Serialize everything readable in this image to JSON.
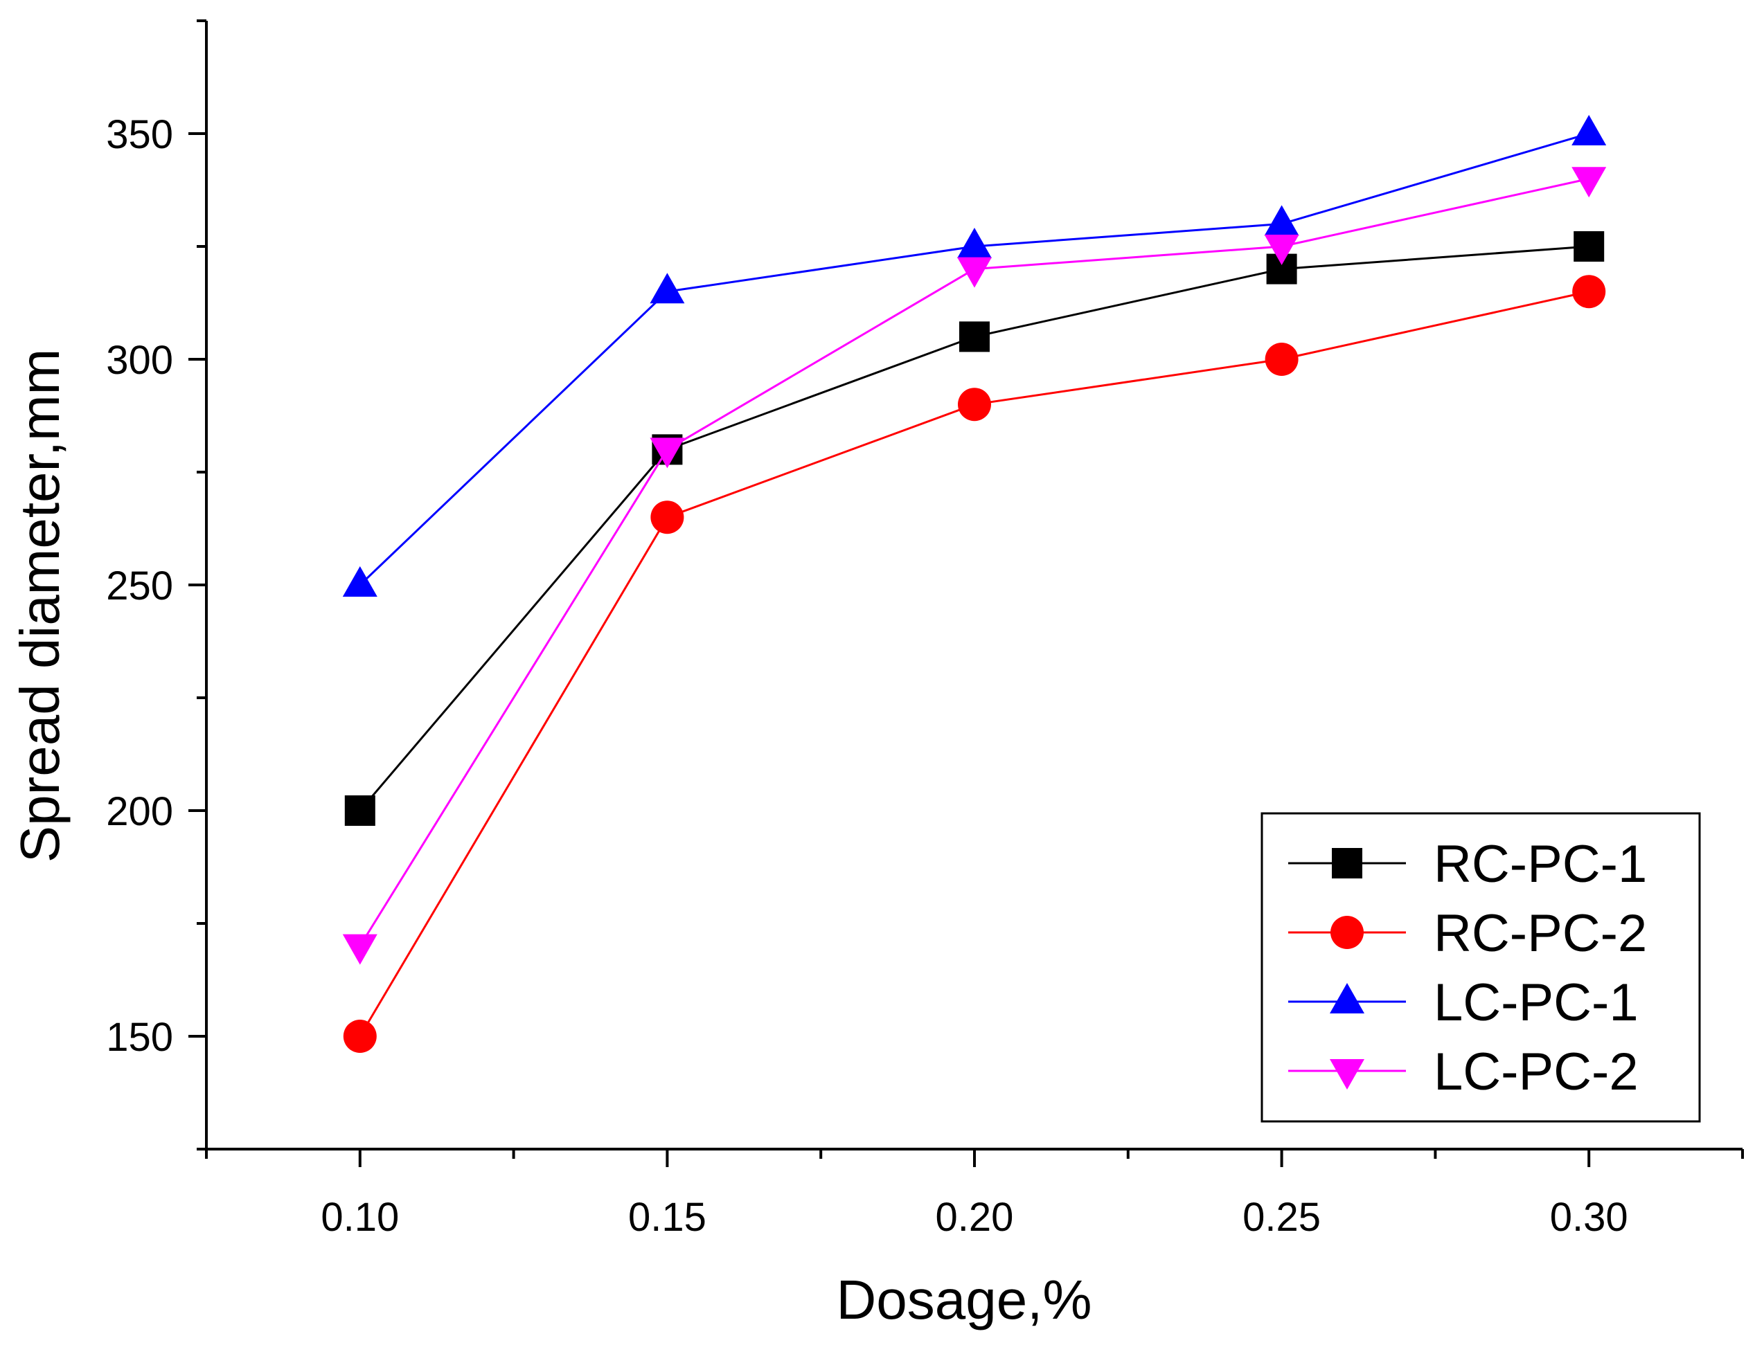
{
  "chart_data": {
    "type": "line",
    "title": "",
    "xlabel": "Dosage,%",
    "ylabel": "Spread diameter,mm",
    "x": [
      0.1,
      0.15,
      0.2,
      0.25,
      0.3
    ],
    "x_tick_labels": [
      "0.10",
      "0.15",
      "0.20",
      "0.25",
      "0.30"
    ],
    "y_tick_values": [
      150,
      200,
      250,
      300,
      350
    ],
    "y_tick_labels": [
      "150",
      "200",
      "250",
      "300",
      "350"
    ],
    "xlim": [
      0.075,
      0.325
    ],
    "ylim": [
      125,
      375
    ],
    "grid": false,
    "legend_position": "bottom-right",
    "series": [
      {
        "name": "RC-PC-1",
        "marker": "square",
        "color": "#000000",
        "values": [
          200,
          280,
          305,
          320,
          325
        ]
      },
      {
        "name": "RC-PC-2",
        "marker": "circle",
        "color": "#ff0000",
        "values": [
          150,
          265,
          290,
          300,
          315
        ]
      },
      {
        "name": "LC-PC-1",
        "marker": "triangle-up",
        "color": "#0000ff",
        "values": [
          250,
          315,
          325,
          330,
          350
        ]
      },
      {
        "name": "LC-PC-2",
        "marker": "triangle-down",
        "color": "#ff00ff",
        "values": [
          170,
          280,
          320,
          325,
          340
        ]
      }
    ]
  }
}
